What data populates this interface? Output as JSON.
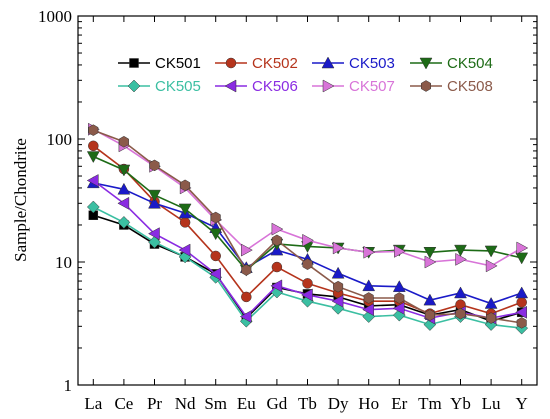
{
  "chart_data": {
    "type": "line",
    "ylabel": "Sample/Chondrite",
    "yscale": "log",
    "ylim": [
      1,
      1000
    ],
    "y_ticks": [
      "1",
      "10",
      "100",
      "1000"
    ],
    "categories": [
      "La",
      "Ce",
      "Pr",
      "Nd",
      "Sm",
      "Eu",
      "Gd",
      "Tb",
      "Dy",
      "Ho",
      "Er",
      "Tm",
      "Yb",
      "Lu",
      "Y"
    ],
    "legend_placement": "top-right",
    "series": [
      {
        "name": "CK501",
        "color": "#000000",
        "marker": "square",
        "values": [
          24,
          20,
          14,
          11,
          8,
          3.5,
          6.2,
          5.5,
          5.2,
          4.4,
          4.5,
          3.7,
          4.1,
          3.3,
          3.9
        ]
      },
      {
        "name": "CK502",
        "color": "#b5341c",
        "marker": "circle",
        "values": [
          88,
          57,
          31,
          21,
          11.2,
          5.2,
          9.1,
          6.7,
          5.6,
          4.8,
          4.8,
          3.8,
          4.5,
          3.8,
          4.7
        ]
      },
      {
        "name": "CK503",
        "color": "#1a1ac8",
        "marker": "triangle-up",
        "values": [
          44,
          39,
          30,
          25,
          19,
          9,
          12.5,
          10.5,
          8.1,
          6.4,
          6.3,
          4.9,
          5.6,
          4.6,
          5.6
        ]
      },
      {
        "name": "CK504",
        "color": "#1d6b16",
        "marker": "triangle-down",
        "values": [
          72,
          56,
          35,
          27,
          17,
          8.6,
          14,
          13.4,
          13,
          12,
          12.5,
          12,
          12.5,
          12.3,
          10.8
        ]
      },
      {
        "name": "CK505",
        "color": "#3bbfa2",
        "marker": "diamond",
        "values": [
          28,
          21,
          14.5,
          11,
          7.5,
          3.3,
          5.7,
          4.8,
          4.2,
          3.6,
          3.7,
          3.1,
          3.6,
          3.1,
          2.9
        ]
      },
      {
        "name": "CK506",
        "color": "#8a2be2",
        "marker": "triangle-left",
        "values": [
          46,
          30,
          17,
          12.5,
          8,
          3.6,
          6.4,
          5.4,
          4.8,
          4.1,
          4.2,
          3.5,
          3.9,
          3.5,
          3.9
        ]
      },
      {
        "name": "CK507",
        "color": "#d874d8",
        "marker": "triangle-right",
        "values": [
          120,
          88,
          60,
          40,
          22,
          12.5,
          18.5,
          15,
          13,
          12,
          12.2,
          10,
          10.5,
          9.3,
          13
        ]
      },
      {
        "name": "CK508",
        "color": "#8b5a4a",
        "marker": "hexagon",
        "values": [
          118,
          95,
          61,
          42,
          23,
          8.6,
          15,
          9.6,
          6.3,
          5.1,
          5.1,
          3.7,
          3.8,
          3.5,
          3.2
        ]
      }
    ]
  }
}
